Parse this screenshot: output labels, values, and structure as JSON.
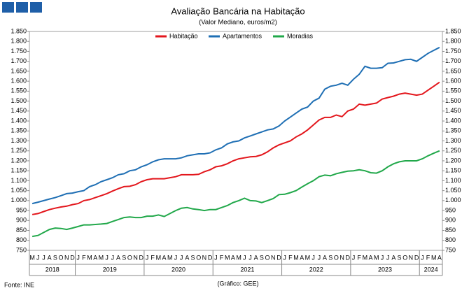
{
  "chart_data": {
    "type": "line",
    "title": "Avaliação Bancária na Habitação",
    "subtitle": "(Valor Mediano, euros/m2)",
    "source": "Fonte: INE",
    "credit": "(Gráfico: GEE)",
    "categories": [
      "M",
      "J",
      "J",
      "A",
      "S",
      "O",
      "N",
      "D",
      "J",
      "F",
      "M",
      "A",
      "M",
      "J",
      "J",
      "A",
      "S",
      "O",
      "N",
      "D",
      "J",
      "F",
      "M",
      "A",
      "M",
      "J",
      "J",
      "A",
      "S",
      "O",
      "N",
      "D",
      "J",
      "F",
      "M",
      "A",
      "M",
      "J",
      "J",
      "A",
      "S",
      "O",
      "N",
      "D",
      "J",
      "F",
      "M",
      "A",
      "M",
      "J",
      "J",
      "A",
      "S",
      "O",
      "N",
      "D",
      "J",
      "F",
      "M",
      "A",
      "M",
      "J",
      "J",
      "A",
      "S",
      "O",
      "N",
      "D",
      "J",
      "F",
      "M",
      "A"
    ],
    "years": [
      "2018",
      "2019",
      "2020",
      "2021",
      "2022",
      "2023",
      "2024"
    ],
    "series": [
      {
        "name": "Habitação",
        "color": "#e3161c",
        "values": [
          930,
          935,
          945,
          955,
          962,
          968,
          972,
          980,
          985,
          1000,
          1005,
          1015,
          1025,
          1035,
          1048,
          1060,
          1070,
          1072,
          1080,
          1095,
          1105,
          1110,
          1110,
          1110,
          1115,
          1120,
          1130,
          1130,
          1130,
          1132,
          1145,
          1155,
          1170,
          1175,
          1185,
          1200,
          1210,
          1215,
          1220,
          1222,
          1230,
          1245,
          1265,
          1280,
          1290,
          1300,
          1320,
          1335,
          1355,
          1380,
          1405,
          1418,
          1418,
          1430,
          1422,
          1450,
          1460,
          1485,
          1480,
          1485,
          1490,
          1510,
          1518,
          1525,
          1535,
          1540,
          1535,
          1530,
          1535,
          1555,
          1575,
          1595
        ]
      },
      {
        "name": "Apartamentos",
        "color": "#1f6fb4",
        "values": [
          985,
          992,
          1000,
          1008,
          1015,
          1025,
          1035,
          1038,
          1045,
          1050,
          1070,
          1080,
          1095,
          1105,
          1115,
          1130,
          1135,
          1150,
          1155,
          1170,
          1180,
          1195,
          1205,
          1210,
          1210,
          1210,
          1215,
          1225,
          1230,
          1235,
          1235,
          1240,
          1255,
          1265,
          1285,
          1295,
          1300,
          1315,
          1325,
          1335,
          1345,
          1355,
          1360,
          1375,
          1400,
          1420,
          1440,
          1460,
          1470,
          1500,
          1515,
          1560,
          1575,
          1580,
          1590,
          1580,
          1610,
          1635,
          1675,
          1665,
          1665,
          1668,
          1690,
          1692,
          1700,
          1708,
          1710,
          1700,
          1720,
          1740,
          1755,
          1770
        ]
      },
      {
        "name": "Moradias",
        "color": "#21a84a",
        "values": [
          820,
          825,
          840,
          855,
          862,
          860,
          855,
          862,
          870,
          878,
          878,
          880,
          882,
          885,
          895,
          905,
          915,
          918,
          915,
          915,
          922,
          922,
          928,
          920,
          935,
          950,
          962,
          965,
          958,
          955,
          950,
          955,
          955,
          965,
          975,
          990,
          1000,
          1012,
          1000,
          998,
          990,
          1000,
          1010,
          1030,
          1032,
          1040,
          1050,
          1068,
          1085,
          1100,
          1120,
          1128,
          1125,
          1135,
          1142,
          1148,
          1150,
          1155,
          1150,
          1140,
          1138,
          1150,
          1170,
          1185,
          1195,
          1200,
          1200,
          1200,
          1210,
          1225,
          1238,
          1250
        ]
      }
    ],
    "ylim": [
      750,
      1850
    ],
    "yticks": [
      750,
      800,
      850,
      900,
      950,
      {
        "value": 1000,
        "label": "1.000"
      },
      {
        "value": 1050,
        "label": "1.050"
      },
      {
        "value": 1100,
        "label": "1.100"
      },
      {
        "value": 1150,
        "label": "1.150"
      },
      {
        "value": 1200,
        "label": "1.200"
      },
      {
        "value": 1250,
        "label": "1.250"
      },
      {
        "value": 1300,
        "label": "1.300"
      },
      {
        "value": 1350,
        "label": "1.350"
      },
      {
        "value": 1400,
        "label": "1.400"
      },
      {
        "value": 1450,
        "label": "1.450"
      },
      {
        "value": 1500,
        "label": "1.500"
      },
      {
        "value": 1550,
        "label": "1.550"
      },
      {
        "value": 1600,
        "label": "1.600"
      },
      {
        "value": 1650,
        "label": "1.650"
      },
      {
        "value": 1700,
        "label": "1.700"
      },
      {
        "value": 1750,
        "label": "1.750"
      },
      {
        "value": 1800,
        "label": "1.800"
      },
      {
        "value": 1850,
        "label": "1.850"
      }
    ],
    "grid": false,
    "legend": "top"
  }
}
